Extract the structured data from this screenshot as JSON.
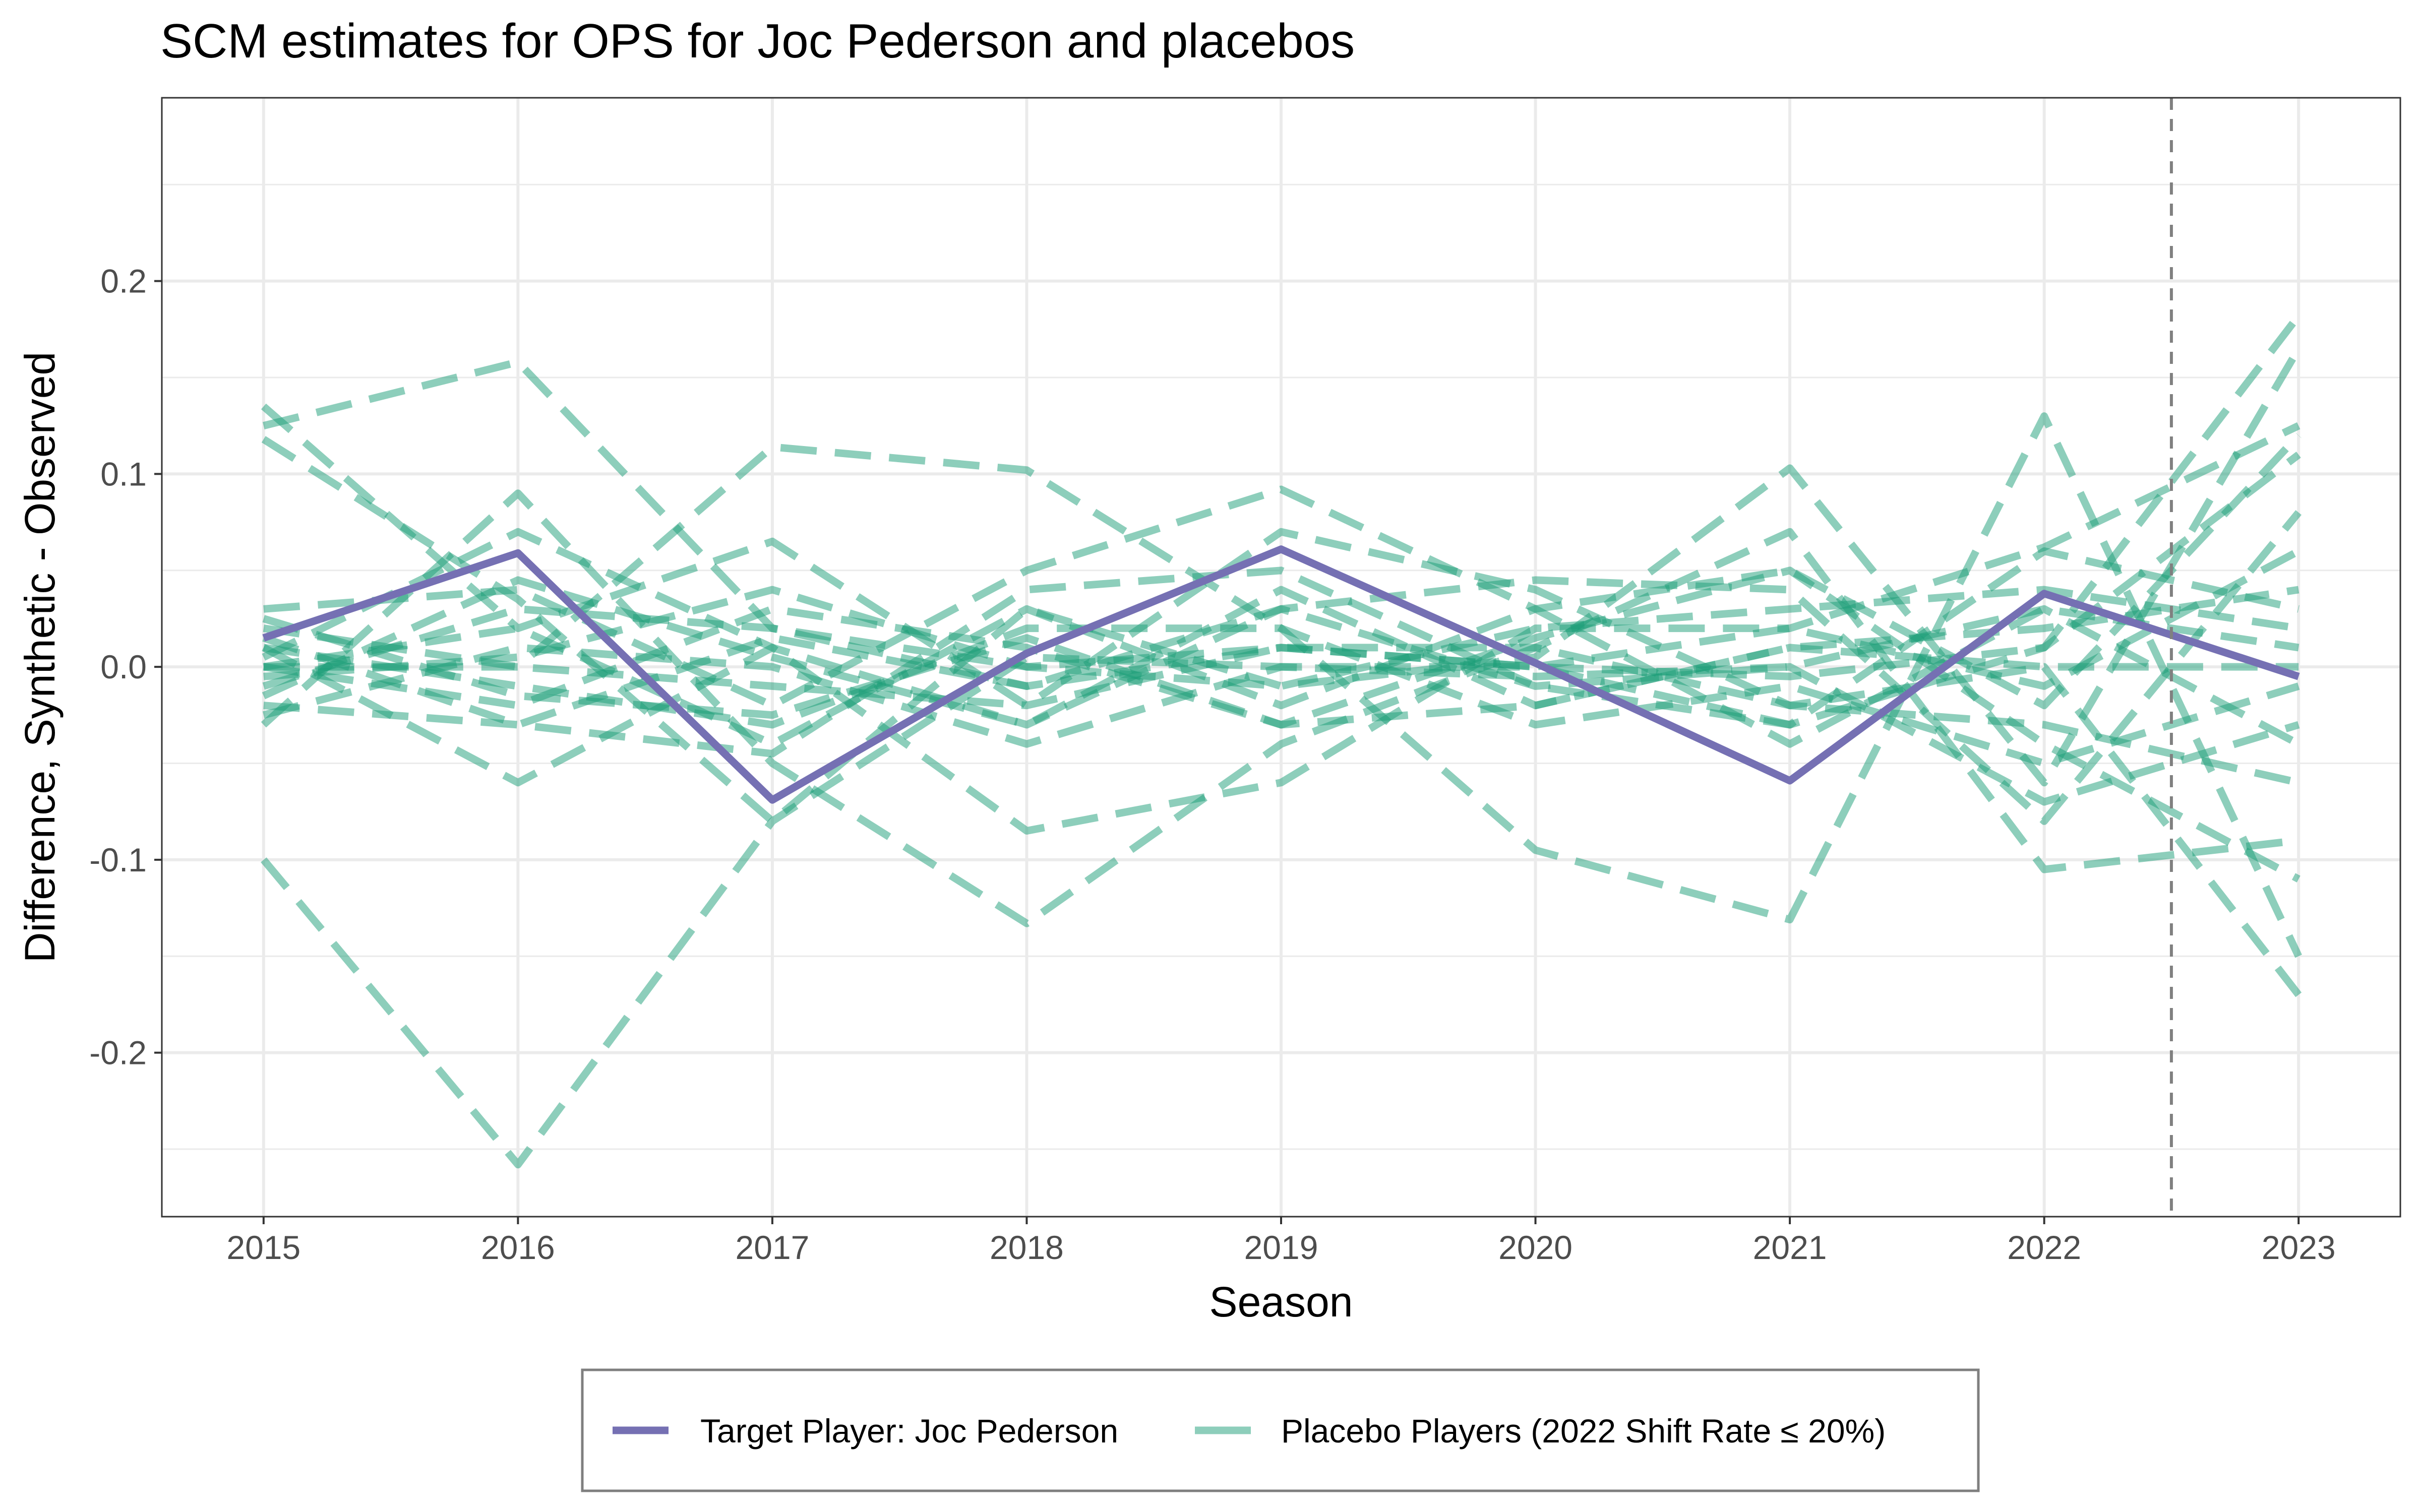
{
  "chart_data": {
    "type": "line",
    "title": "SCM estimates for OPS for Joc Pederson and placebos",
    "xlabel": "Season",
    "ylabel": "Difference, Synthetic - Observed",
    "x": [
      2015,
      2016,
      2017,
      2018,
      2019,
      2020,
      2021,
      2022,
      2023
    ],
    "x_tick_labels": [
      "2015",
      "2016",
      "2017",
      "2018",
      "2019",
      "2020",
      "2021",
      "2022",
      "2023"
    ],
    "y_ticks": [
      -0.2,
      -0.1,
      0.0,
      0.1,
      0.2
    ],
    "y_tick_labels": [
      "-0.2",
      "-0.1",
      "0.0",
      "0.1",
      "0.2"
    ],
    "xlim": [
      2014.6,
      2023.4
    ],
    "ylim": [
      -0.285,
      0.295
    ],
    "grid": true,
    "vline": 2022.5,
    "legend_position": "bottom",
    "colors": {
      "target": "#7570b3",
      "placebo": "#1b9e77",
      "vline": "#808080",
      "grid": "#ebebeb"
    },
    "series": [
      {
        "name": "Target Player: Joc Pederson",
        "role": "target",
        "values": [
          0.015,
          0.059,
          -0.069,
          0.007,
          0.061,
          0.002,
          -0.059,
          0.038,
          -0.005
        ]
      },
      {
        "name": "Placebo Players (2022 Shift Rate ≤ 20%)",
        "role": "placebo",
        "lines": [
          [
            0.125,
            0.158,
            0.02,
            -0.01,
            0.01,
            0.0,
            -0.005,
            0.01,
            0.182
          ],
          [
            0.135,
            0.02,
            0.065,
            -0.02,
            0.07,
            0.04,
            -0.02,
            0.0,
            -0.17
          ],
          [
            -0.1,
            -0.258,
            -0.08,
            0.005,
            0.0,
            -0.005,
            0.0,
            0.03,
            -0.04
          ],
          [
            0.0,
            0.0,
            0.114,
            0.102,
            0.02,
            -0.095,
            -0.131,
            0.13,
            -0.15
          ],
          [
            0.118,
            0.035,
            -0.08,
            0.03,
            -0.01,
            0.005,
            0.103,
            -0.06,
            0.165
          ],
          [
            -0.03,
            0.09,
            -0.05,
            -0.133,
            -0.04,
            0.01,
            0.07,
            -0.105,
            -0.09
          ],
          [
            0.03,
            0.04,
            -0.02,
            0.05,
            0.092,
            0.03,
            0.05,
            -0.02,
            0.12
          ],
          [
            0.01,
            -0.06,
            0.01,
            -0.085,
            -0.06,
            0.02,
            0.02,
            0.062,
            0.125
          ],
          [
            0.005,
            0.07,
            0.01,
            -0.03,
            0.03,
            0.045,
            0.04,
            -0.08,
            0.08
          ],
          [
            -0.02,
            -0.03,
            -0.045,
            0.04,
            0.05,
            -0.01,
            -0.03,
            0.01,
            0.11
          ],
          [
            0.0,
            -0.02,
            0.03,
            0.01,
            -0.03,
            -0.02,
            0.01,
            0.02,
            0.04
          ],
          [
            0.02,
            0.0,
            -0.01,
            -0.02,
            0.01,
            0.01,
            -0.02,
            -0.03,
            -0.06
          ],
          [
            -0.01,
            0.03,
            0.02,
            0.0,
            -0.01,
            0.02,
            0.03,
            0.04,
            0.02
          ],
          [
            0.01,
            -0.01,
            -0.03,
            0.02,
            0.02,
            -0.03,
            -0.01,
            -0.05,
            -0.01
          ],
          [
            -0.025,
            0.01,
            0.0,
            -0.04,
            0.0,
            0.0,
            0.02,
            -0.01,
            0.06
          ],
          [
            0.0,
            0.02,
            -0.04,
            0.03,
            -0.02,
            0.03,
            -0.04,
            0.03,
            0.01
          ],
          [
            0.015,
            -0.03,
            0.015,
            -0.01,
            0.03,
            -0.01,
            0.0,
            -0.07,
            -0.03
          ],
          [
            -0.005,
            0.005,
            0.04,
            0.0,
            0.01,
            0.0,
            -0.03,
            0.06,
            0.03
          ],
          [
            0.025,
            -0.015,
            -0.025,
            0.015,
            -0.03,
            0.015,
            0.05,
            -0.04,
            -0.11
          ],
          [
            -0.015,
            0.045,
            0.005,
            -0.03,
            0.04,
            -0.02,
            0.01,
            0.0,
            0.0
          ]
        ]
      }
    ]
  }
}
